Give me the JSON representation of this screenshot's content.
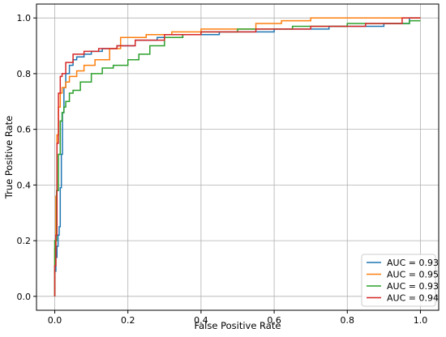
{
  "chart_data": {
    "type": "line",
    "title": "",
    "xlabel": "False Positive Rate",
    "ylabel": "True Positive Rate",
    "xlim": [
      -0.05,
      1.05
    ],
    "ylim": [
      -0.05,
      1.05
    ],
    "xticks": [
      "0.0",
      "0.2",
      "0.4",
      "0.6",
      "0.8",
      "1.0"
    ],
    "yticks": [
      "0.0",
      "0.2",
      "0.4",
      "0.6",
      "0.8",
      "1.0"
    ],
    "grid": true,
    "legend_position": "lower-right",
    "series": [
      {
        "name": "AUC = 0.93",
        "color": "#1f77b4",
        "x": [
          0.0,
          0.0,
          0.003,
          0.003,
          0.006,
          0.006,
          0.009,
          0.009,
          0.012,
          0.012,
          0.015,
          0.015,
          0.018,
          0.018,
          0.021,
          0.021,
          0.025,
          0.025,
          0.03,
          0.03,
          0.04,
          0.04,
          0.05,
          0.05,
          0.06,
          0.06,
          0.08,
          0.08,
          0.1,
          0.1,
          0.13,
          0.13,
          0.17,
          0.17,
          0.22,
          0.22,
          0.28,
          0.28,
          0.35,
          0.35,
          0.45,
          0.45,
          0.6,
          0.6,
          0.75,
          0.75,
          0.9,
          0.9,
          0.97,
          0.97,
          1.0
        ],
        "y": [
          0.0,
          0.09,
          0.09,
          0.14,
          0.14,
          0.18,
          0.18,
          0.22,
          0.22,
          0.25,
          0.25,
          0.39,
          0.39,
          0.51,
          0.51,
          0.66,
          0.66,
          0.75,
          0.75,
          0.8,
          0.8,
          0.83,
          0.83,
          0.85,
          0.85,
          0.86,
          0.86,
          0.87,
          0.87,
          0.88,
          0.88,
          0.89,
          0.89,
          0.9,
          0.9,
          0.92,
          0.92,
          0.93,
          0.93,
          0.94,
          0.94,
          0.95,
          0.95,
          0.96,
          0.96,
          0.97,
          0.97,
          0.98,
          0.98,
          1.0,
          1.0
        ]
      },
      {
        "name": "AUC = 0.95",
        "color": "#ff7f0e",
        "x": [
          0.0,
          0.0,
          0.003,
          0.003,
          0.006,
          0.006,
          0.01,
          0.01,
          0.015,
          0.015,
          0.02,
          0.02,
          0.03,
          0.03,
          0.04,
          0.04,
          0.06,
          0.06,
          0.08,
          0.08,
          0.11,
          0.11,
          0.15,
          0.15,
          0.18,
          0.18,
          0.25,
          0.25,
          0.32,
          0.32,
          0.4,
          0.4,
          0.55,
          0.55,
          0.62,
          0.62,
          0.7,
          0.7,
          1.0
        ],
        "y": [
          0.0,
          0.17,
          0.17,
          0.36,
          0.36,
          0.58,
          0.58,
          0.68,
          0.68,
          0.73,
          0.73,
          0.75,
          0.75,
          0.77,
          0.77,
          0.79,
          0.79,
          0.81,
          0.81,
          0.83,
          0.83,
          0.85,
          0.85,
          0.89,
          0.89,
          0.93,
          0.93,
          0.94,
          0.94,
          0.95,
          0.95,
          0.96,
          0.96,
          0.98,
          0.98,
          0.99,
          0.99,
          1.0,
          1.0
        ]
      },
      {
        "name": "AUC = 0.93",
        "color": "#2ca02c",
        "x": [
          0.0,
          0.0,
          0.005,
          0.005,
          0.01,
          0.01,
          0.015,
          0.015,
          0.02,
          0.02,
          0.025,
          0.025,
          0.03,
          0.03,
          0.04,
          0.04,
          0.05,
          0.05,
          0.07,
          0.07,
          0.1,
          0.1,
          0.13,
          0.13,
          0.16,
          0.16,
          0.2,
          0.2,
          0.23,
          0.23,
          0.26,
          0.26,
          0.3,
          0.3,
          0.35,
          0.35,
          0.4,
          0.4,
          0.5,
          0.5,
          0.65,
          0.65,
          0.8,
          0.8,
          0.97,
          0.97,
          1.0
        ],
        "y": [
          0.0,
          0.2,
          0.2,
          0.38,
          0.38,
          0.51,
          0.51,
          0.63,
          0.63,
          0.66,
          0.66,
          0.68,
          0.68,
          0.7,
          0.7,
          0.73,
          0.73,
          0.74,
          0.74,
          0.77,
          0.77,
          0.8,
          0.8,
          0.82,
          0.82,
          0.83,
          0.83,
          0.85,
          0.85,
          0.87,
          0.87,
          0.9,
          0.9,
          0.93,
          0.93,
          0.94,
          0.94,
          0.95,
          0.95,
          0.96,
          0.96,
          0.97,
          0.97,
          0.98,
          0.98,
          0.99,
          0.99
        ]
      },
      {
        "name": "AUC = 0.94",
        "color": "#d62728",
        "x": [
          0.0,
          0.0,
          0.003,
          0.003,
          0.006,
          0.006,
          0.01,
          0.01,
          0.015,
          0.015,
          0.02,
          0.02,
          0.03,
          0.03,
          0.05,
          0.05,
          0.08,
          0.08,
          0.12,
          0.12,
          0.17,
          0.17,
          0.22,
          0.22,
          0.3,
          0.3,
          0.4,
          0.4,
          0.55,
          0.55,
          0.7,
          0.7,
          0.85,
          0.85,
          0.95,
          0.95,
          1.0
        ],
        "y": [
          0.0,
          0.11,
          0.11,
          0.22,
          0.22,
          0.55,
          0.55,
          0.73,
          0.73,
          0.79,
          0.79,
          0.8,
          0.8,
          0.84,
          0.84,
          0.87,
          0.87,
          0.88,
          0.88,
          0.89,
          0.89,
          0.9,
          0.9,
          0.92,
          0.92,
          0.94,
          0.94,
          0.95,
          0.95,
          0.96,
          0.96,
          0.97,
          0.97,
          0.98,
          0.98,
          1.0,
          1.0
        ]
      }
    ]
  }
}
